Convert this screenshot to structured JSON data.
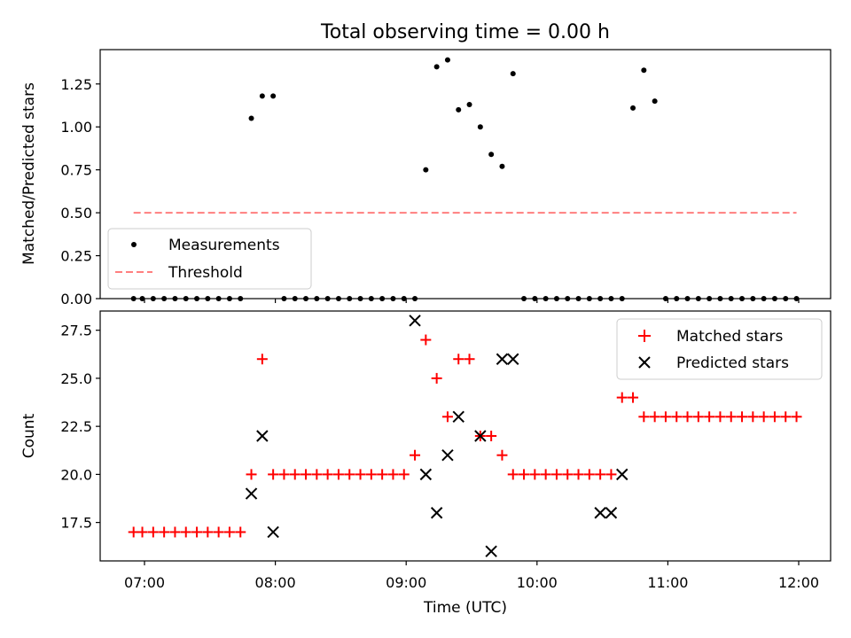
{
  "chart_data": [
    {
      "type": "scatter",
      "title": "Total observing time = 0.00 h",
      "xlabel": "",
      "ylabel": "Matched/Predicted stars",
      "ylim": [
        0,
        1.45
      ],
      "yticks": [
        "0.00",
        "0.25",
        "0.50",
        "0.75",
        "1.00",
        "1.25"
      ],
      "legend": {
        "placement": "lower-left",
        "entries": [
          "Measurements",
          "Threshold"
        ]
      },
      "series": [
        {
          "name": "Measurements",
          "color": "#000000",
          "marker": "dot",
          "x": [
            "06:55",
            "06:59",
            "07:04",
            "07:09",
            "07:14",
            "07:19",
            "07:24",
            "07:29",
            "07:34",
            "07:39",
            "07:44",
            "07:49",
            "07:54",
            "07:59",
            "08:04",
            "08:09",
            "08:14",
            "08:19",
            "08:24",
            "08:29",
            "08:34",
            "08:39",
            "08:44",
            "08:49",
            "08:54",
            "08:59",
            "09:04",
            "09:09",
            "09:14",
            "09:19",
            "09:24",
            "09:29",
            "09:34",
            "09:39",
            "09:44",
            "09:49",
            "09:54",
            "09:59",
            "10:04",
            "10:09",
            "10:14",
            "10:19",
            "10:24",
            "10:29",
            "10:34",
            "10:39",
            "10:44",
            "10:49",
            "10:54",
            "10:59",
            "11:04",
            "11:09",
            "11:14",
            "11:19",
            "11:24",
            "11:29",
            "11:34",
            "11:39",
            "11:44",
            "11:49",
            "11:54",
            "11:59"
          ],
          "y": [
            0,
            0,
            0,
            0,
            0,
            0,
            0,
            0,
            0,
            0,
            0,
            1.05,
            1.18,
            1.18,
            0,
            0,
            0,
            0,
            0,
            0,
            0,
            0,
            0,
            0,
            0,
            0,
            0,
            0.75,
            1.35,
            1.39,
            1.1,
            1.13,
            1.0,
            0.84,
            0.77,
            1.31,
            0.0,
            0,
            0,
            0,
            0,
            0,
            0,
            0,
            0,
            0,
            1.11,
            1.33,
            1.15,
            0,
            0,
            0,
            0,
            0,
            0,
            0,
            0,
            0,
            0,
            0,
            0,
            0
          ]
        },
        {
          "name": "Threshold",
          "color": "#ff7f7f",
          "style": "dashed",
          "x": [
            "06:55",
            "11:59"
          ],
          "y": [
            0.5,
            0.5
          ]
        }
      ]
    },
    {
      "type": "scatter",
      "title": "",
      "xlabel": "Time (UTC)",
      "ylabel": "Count",
      "ylim": [
        15.5,
        28.5
      ],
      "yticks": [
        "17.5",
        "20.0",
        "22.5",
        "25.0",
        "27.5"
      ],
      "xticks": [
        "07:00",
        "08:00",
        "09:00",
        "10:00",
        "11:00",
        "12:00"
      ],
      "legend": {
        "placement": "top-right",
        "entries": [
          "Matched stars",
          "Predicted stars"
        ]
      },
      "series": [
        {
          "name": "Matched stars",
          "color": "#ff0000",
          "marker": "plus",
          "x": [
            "06:55",
            "06:59",
            "07:04",
            "07:09",
            "07:14",
            "07:19",
            "07:24",
            "07:29",
            "07:34",
            "07:39",
            "07:44",
            "07:49",
            "07:54",
            "07:59",
            "08:04",
            "08:09",
            "08:14",
            "08:19",
            "08:24",
            "08:29",
            "08:34",
            "08:39",
            "08:44",
            "08:49",
            "08:54",
            "08:59",
            "09:04",
            "09:09",
            "09:14",
            "09:19",
            "09:24",
            "09:29",
            "09:34",
            "09:39",
            "09:44",
            "09:49",
            "09:54",
            "09:59",
            "10:04",
            "10:09",
            "10:14",
            "10:19",
            "10:24",
            "10:29",
            "10:34",
            "10:39",
            "10:44",
            "10:49",
            "10:54",
            "10:59",
            "11:04",
            "11:09",
            "11:14",
            "11:19",
            "11:24",
            "11:29",
            "11:34",
            "11:39",
            "11:44",
            "11:49",
            "11:54",
            "11:59"
          ],
          "y": [
            17,
            17,
            17,
            17,
            17,
            17,
            17,
            17,
            17,
            17,
            17,
            20,
            26,
            20,
            20,
            20,
            20,
            20,
            20,
            20,
            20,
            20,
            20,
            20,
            20,
            20,
            21,
            27,
            25,
            23,
            26,
            26,
            22,
            22,
            21,
            20,
            20,
            20,
            20,
            20,
            20,
            20,
            20,
            20,
            20,
            24,
            24,
            23,
            23,
            23,
            23,
            23,
            23,
            23,
            23,
            23,
            23,
            23,
            23,
            23,
            23,
            23
          ]
        },
        {
          "name": "Predicted stars",
          "color": "#000000",
          "marker": "x",
          "x": [
            "07:49",
            "07:54",
            "07:59",
            "09:04",
            "09:09",
            "09:14",
            "09:19",
            "09:24",
            "09:34",
            "09:39",
            "09:44",
            "09:49",
            "10:29",
            "10:34",
            "10:39"
          ],
          "y": [
            19,
            22,
            17,
            28,
            20,
            18,
            21,
            23,
            22,
            16,
            26,
            26,
            18,
            18,
            20
          ]
        }
      ]
    }
  ]
}
